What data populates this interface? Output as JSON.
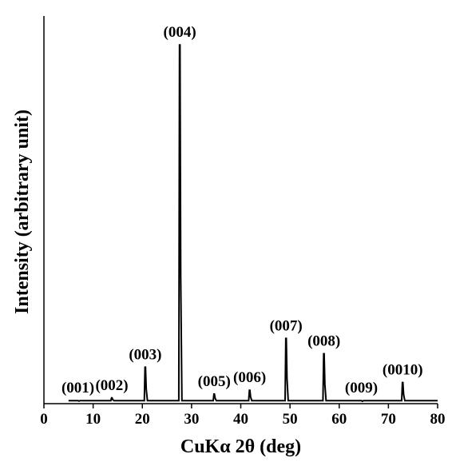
{
  "chart_data": {
    "type": "line",
    "title": "",
    "xlabel": "CuKα 2θ (deg)",
    "ylabel": "Intensity (arbitrary unit)",
    "xlim": [
      0,
      80
    ],
    "ylim": [
      0,
      1.0
    ],
    "x_ticks": [
      0,
      10,
      20,
      30,
      40,
      50,
      60,
      70,
      80
    ],
    "y_ticks_visible": false,
    "grid": false,
    "legend": "none",
    "data_start": 5,
    "data_end": 80,
    "baseline": 0.008,
    "line_color": "#000000",
    "peaks": [
      {
        "label": "(001)",
        "x": 6.9,
        "y": 0.004
      },
      {
        "label": "(002)",
        "x": 13.8,
        "y": 0.015
      },
      {
        "label": "(003)",
        "x": 20.6,
        "y": 0.095
      },
      {
        "label": "(004)",
        "x": 27.6,
        "y": 0.935
      },
      {
        "label": "(005)",
        "x": 34.6,
        "y": 0.025
      },
      {
        "label": "(006)",
        "x": 41.8,
        "y": 0.035
      },
      {
        "label": "(007)",
        "x": 49.2,
        "y": 0.17
      },
      {
        "label": "(008)",
        "x": 56.9,
        "y": 0.13
      },
      {
        "label": "(009)",
        "x": 64.5,
        "y": 0.003
      },
      {
        "label": "(0010)",
        "x": 72.9,
        "y": 0.055
      }
    ]
  }
}
